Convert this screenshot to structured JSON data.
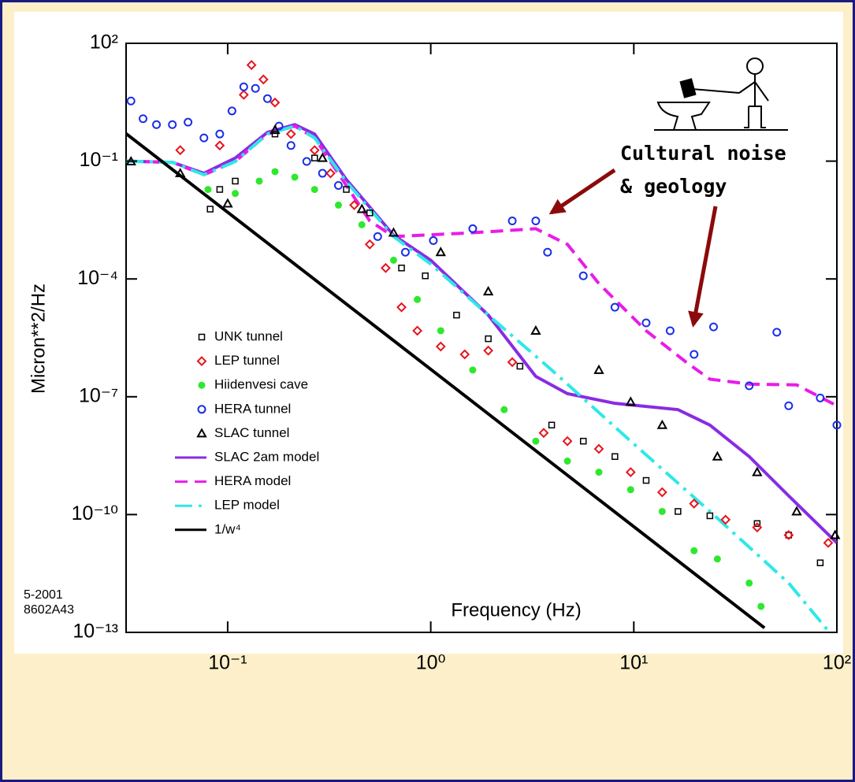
{
  "chart_data": {
    "type": "scatter",
    "x_label": "Frequency  (Hz)",
    "y_label": "Micron**2/Hz",
    "xlog": true,
    "ylog": true,
    "xlim": [
      0.0316,
      100
    ],
    "ylim": [
      1e-13,
      100
    ],
    "xticks": [
      {
        "value": 0.1,
        "label": "10⁻¹"
      },
      {
        "value": 1,
        "label": "10⁰"
      },
      {
        "value": 10,
        "label": "10¹"
      },
      {
        "value": 100,
        "label": "10²"
      }
    ],
    "yticks": [
      {
        "value": 1e-13,
        "label": "10⁻¹³"
      },
      {
        "value": 1e-10,
        "label": "10⁻¹⁰"
      },
      {
        "value": 1e-07,
        "label": "10⁻⁷"
      },
      {
        "value": 0.0001,
        "label": "10⁻⁴"
      },
      {
        "value": 0.1,
        "label": "10⁻¹"
      },
      {
        "value": 100,
        "label": "10²"
      }
    ],
    "annotations": [
      "Cultural noise",
      "& geology"
    ],
    "footnotes": [
      "5-2001",
      "8602A43"
    ],
    "series": [
      {
        "name": "UNK tunnel",
        "style": "markers",
        "marker": "square",
        "color": "#000000",
        "x": [
          0.082,
          0.0914,
          0.109,
          0.171,
          0.268,
          0.384,
          0.501,
          0.718,
          0.94,
          1.34,
          1.92,
          2.75,
          3.94,
          5.64,
          8.07,
          11.5,
          16.5,
          23.7,
          40.5,
          57.9,
          82.8
        ],
        "values": [
          0.006,
          0.019,
          0.031,
          0.49,
          0.12,
          0.019,
          0.0048,
          0.00019,
          0.00012,
          1.2e-05,
          3e-06,
          6e-07,
          1.9e-08,
          7.4e-09,
          3e-09,
          7.4e-10,
          1.2e-10,
          9.3e-11,
          5.9e-11,
          3e-11,
          5.9e-12
        ]
      },
      {
        "name": "LEP tunnel",
        "style": "markers",
        "marker": "diamond",
        "color": "#e8141c",
        "x": [
          0.0584,
          0.0914,
          0.12,
          0.131,
          0.15,
          0.171,
          0.205,
          0.268,
          0.321,
          0.42,
          0.501,
          0.6,
          0.718,
          0.859,
          1.12,
          1.47,
          1.92,
          2.52,
          3.6,
          4.71,
          6.73,
          9.65,
          13.8,
          19.8,
          28.3,
          40.5,
          57.9,
          90.6
        ],
        "values": [
          0.19,
          0.25,
          4.9,
          28,
          12,
          3.1,
          0.49,
          0.19,
          0.049,
          0.0076,
          0.00076,
          0.00019,
          1.9e-05,
          4.8e-06,
          1.9e-06,
          1.2e-06,
          1.5e-06,
          7.6e-07,
          1.2e-08,
          7.4e-09,
          4.7e-09,
          1.2e-09,
          3.7e-10,
          1.9e-10,
          7.4e-11,
          4.7e-11,
          3e-11,
          1.9e-11
        ]
      },
      {
        "name": "Hiidenvesi cave",
        "style": "markers",
        "marker": "filled-circle",
        "color": "#2ee82e",
        "x": [
          0.08,
          0.109,
          0.143,
          0.171,
          0.214,
          0.268,
          0.351,
          0.458,
          0.656,
          0.859,
          1.12,
          1.61,
          2.3,
          3.29,
          4.71,
          6.73,
          9.65,
          13.8,
          19.8,
          25.8,
          37.0,
          42.3
        ],
        "values": [
          0.019,
          0.015,
          0.031,
          0.054,
          0.039,
          0.019,
          0.0076,
          0.0024,
          0.0003,
          3e-05,
          4.8e-06,
          4.8e-07,
          4.7e-08,
          7.4e-09,
          2.3e-09,
          1.2e-09,
          4.3e-10,
          1.2e-10,
          1.2e-11,
          7.4e-12,
          1.8e-12,
          4.6e-13
        ]
      },
      {
        "name": "HERA tunnel",
        "style": "markers",
        "marker": "circle",
        "color": "#1a2ee8",
        "x": [
          0.0334,
          0.0383,
          0.0446,
          0.0534,
          0.0638,
          0.0764,
          0.0914,
          0.105,
          0.12,
          0.137,
          0.157,
          0.179,
          0.205,
          0.245,
          0.293,
          0.351,
          0.548,
          0.75,
          1.03,
          1.61,
          2.52,
          3.29,
          3.76,
          5.64,
          8.07,
          11.5,
          15.1,
          19.8,
          24.7,
          37.0,
          50.6,
          57.9,
          82.8,
          100
        ],
        "values": [
          3.4,
          1.2,
          0.85,
          0.85,
          0.98,
          0.39,
          0.49,
          1.9,
          7.8,
          7.1,
          3.9,
          0.78,
          0.25,
          0.098,
          0.049,
          0.024,
          0.0012,
          0.00048,
          0.00095,
          0.0019,
          0.003,
          0.003,
          0.00048,
          0.00012,
          1.9e-05,
          7.6e-06,
          4.8e-06,
          1.2e-06,
          6e-06,
          1.9e-07,
          4.4e-06,
          5.9e-08,
          9.3e-08,
          1.9e-08
        ]
      },
      {
        "name": "SLAC tunnel",
        "style": "markers",
        "marker": "triangle",
        "color": "#000000",
        "x": [
          0.0334,
          0.0584,
          0.1,
          0.171,
          0.293,
          0.458,
          0.656,
          1.12,
          1.92,
          3.29,
          6.73,
          9.65,
          13.8,
          25.8,
          40.5,
          63.4,
          98
        ],
        "values": [
          0.098,
          0.049,
          0.0083,
          0.62,
          0.12,
          0.006,
          0.0015,
          0.00048,
          4.8e-05,
          4.8e-06,
          4.8e-07,
          7.4e-08,
          1.9e-08,
          3e-09,
          1.2e-09,
          1.2e-10,
          3e-11
        ]
      },
      {
        "name": "SLAC 2am model",
        "style": "line",
        "dash": "solid",
        "color": "#8a2be2",
        "x": [
          0.0316,
          0.0534,
          0.0764,
          0.109,
          0.157,
          0.214,
          0.268,
          0.384,
          0.656,
          1,
          1.92,
          3.29,
          4.71,
          8.07,
          16.5,
          23.7,
          37.0,
          57.9,
          100
        ],
        "values": [
          0.1,
          0.093,
          0.049,
          0.12,
          0.54,
          0.85,
          0.49,
          0.034,
          0.0013,
          0.0003,
          1.2e-05,
          3.3e-07,
          1.2e-07,
          6.8e-08,
          4.7e-08,
          1.9e-08,
          3e-09,
          3e-10,
          1.9e-11
        ]
      },
      {
        "name": "HERA model",
        "style": "line",
        "dash": "dashed",
        "color": "#e81ce8",
        "x": [
          0.0316,
          0.0534,
          0.0764,
          0.109,
          0.157,
          0.214,
          0.268,
          0.384,
          0.501,
          0.656,
          1.61,
          3.29,
          4.71,
          6.73,
          11.5,
          18.1,
          23.7,
          37.0,
          63.4,
          100
        ],
        "values": [
          0.1,
          0.093,
          0.045,
          0.098,
          0.49,
          0.78,
          0.39,
          0.024,
          0.003,
          0.0012,
          0.0015,
          0.0019,
          0.00076,
          7.6e-05,
          4.8e-06,
          7.6e-07,
          2.8e-07,
          2.1e-07,
          2e-07,
          5.9e-08
        ]
      },
      {
        "name": "LEP model",
        "style": "line",
        "dash": "dashdot",
        "color": "#2ee8e8",
        "x": [
          0.0316,
          0.0534,
          0.0764,
          0.109,
          0.157,
          0.214,
          0.268,
          0.384,
          0.656,
          1,
          1.92,
          3.94,
          9.65,
          23.7,
          57.9,
          90.6
        ],
        "values": [
          0.1,
          0.093,
          0.045,
          0.098,
          0.49,
          0.78,
          0.39,
          0.03,
          0.0012,
          0.00024,
          1.2e-05,
          4.8e-07,
          7.4e-09,
          1.2e-10,
          1.8e-12,
          1.1e-13
        ]
      },
      {
        "name": "1/w⁴",
        "style": "line",
        "dash": "solid",
        "color": "#000000",
        "x": [
          0.0316,
          1,
          44
        ],
        "values": [
          0.5,
          5e-07,
          1.3e-13
        ]
      }
    ]
  }
}
